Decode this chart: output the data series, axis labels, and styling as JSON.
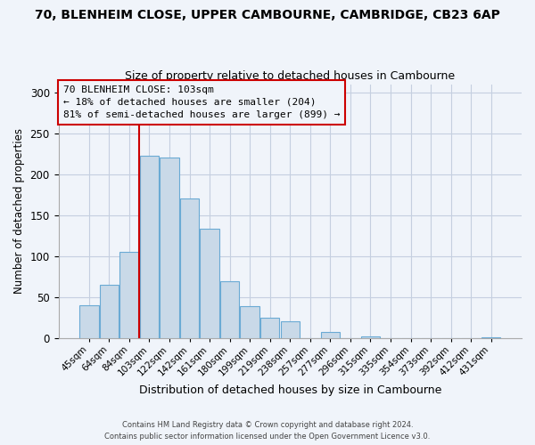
{
  "title": "70, BLENHEIM CLOSE, UPPER CAMBOURNE, CAMBRIDGE, CB23 6AP",
  "subtitle": "Size of property relative to detached houses in Cambourne",
  "xlabel": "Distribution of detached houses by size in Cambourne",
  "ylabel": "Number of detached properties",
  "bar_labels": [
    "45sqm",
    "64sqm",
    "84sqm",
    "103sqm",
    "122sqm",
    "142sqm",
    "161sqm",
    "180sqm",
    "199sqm",
    "219sqm",
    "238sqm",
    "257sqm",
    "277sqm",
    "296sqm",
    "315sqm",
    "335sqm",
    "354sqm",
    "373sqm",
    "392sqm",
    "412sqm",
    "431sqm"
  ],
  "bar_heights": [
    40,
    65,
    105,
    223,
    220,
    170,
    133,
    69,
    39,
    25,
    21,
    0,
    8,
    0,
    2,
    0,
    0,
    0,
    0,
    0,
    1
  ],
  "bar_color": "#c9d9e8",
  "bar_edge_color": "#6aaad4",
  "vline_color": "#cc0000",
  "vline_x_index": 2.5,
  "annotation_title": "70 BLENHEIM CLOSE: 103sqm",
  "annotation_line1": "← 18% of detached houses are smaller (204)",
  "annotation_line2": "81% of semi-detached houses are larger (899) →",
  "annotation_box_edge": "#cc0000",
  "ylim": [
    0,
    310
  ],
  "yticks": [
    0,
    50,
    100,
    150,
    200,
    250,
    300
  ],
  "footer_line1": "Contains HM Land Registry data © Crown copyright and database right 2024.",
  "footer_line2": "Contains public sector information licensed under the Open Government Licence v3.0.",
  "bg_color": "#f0f4fa"
}
